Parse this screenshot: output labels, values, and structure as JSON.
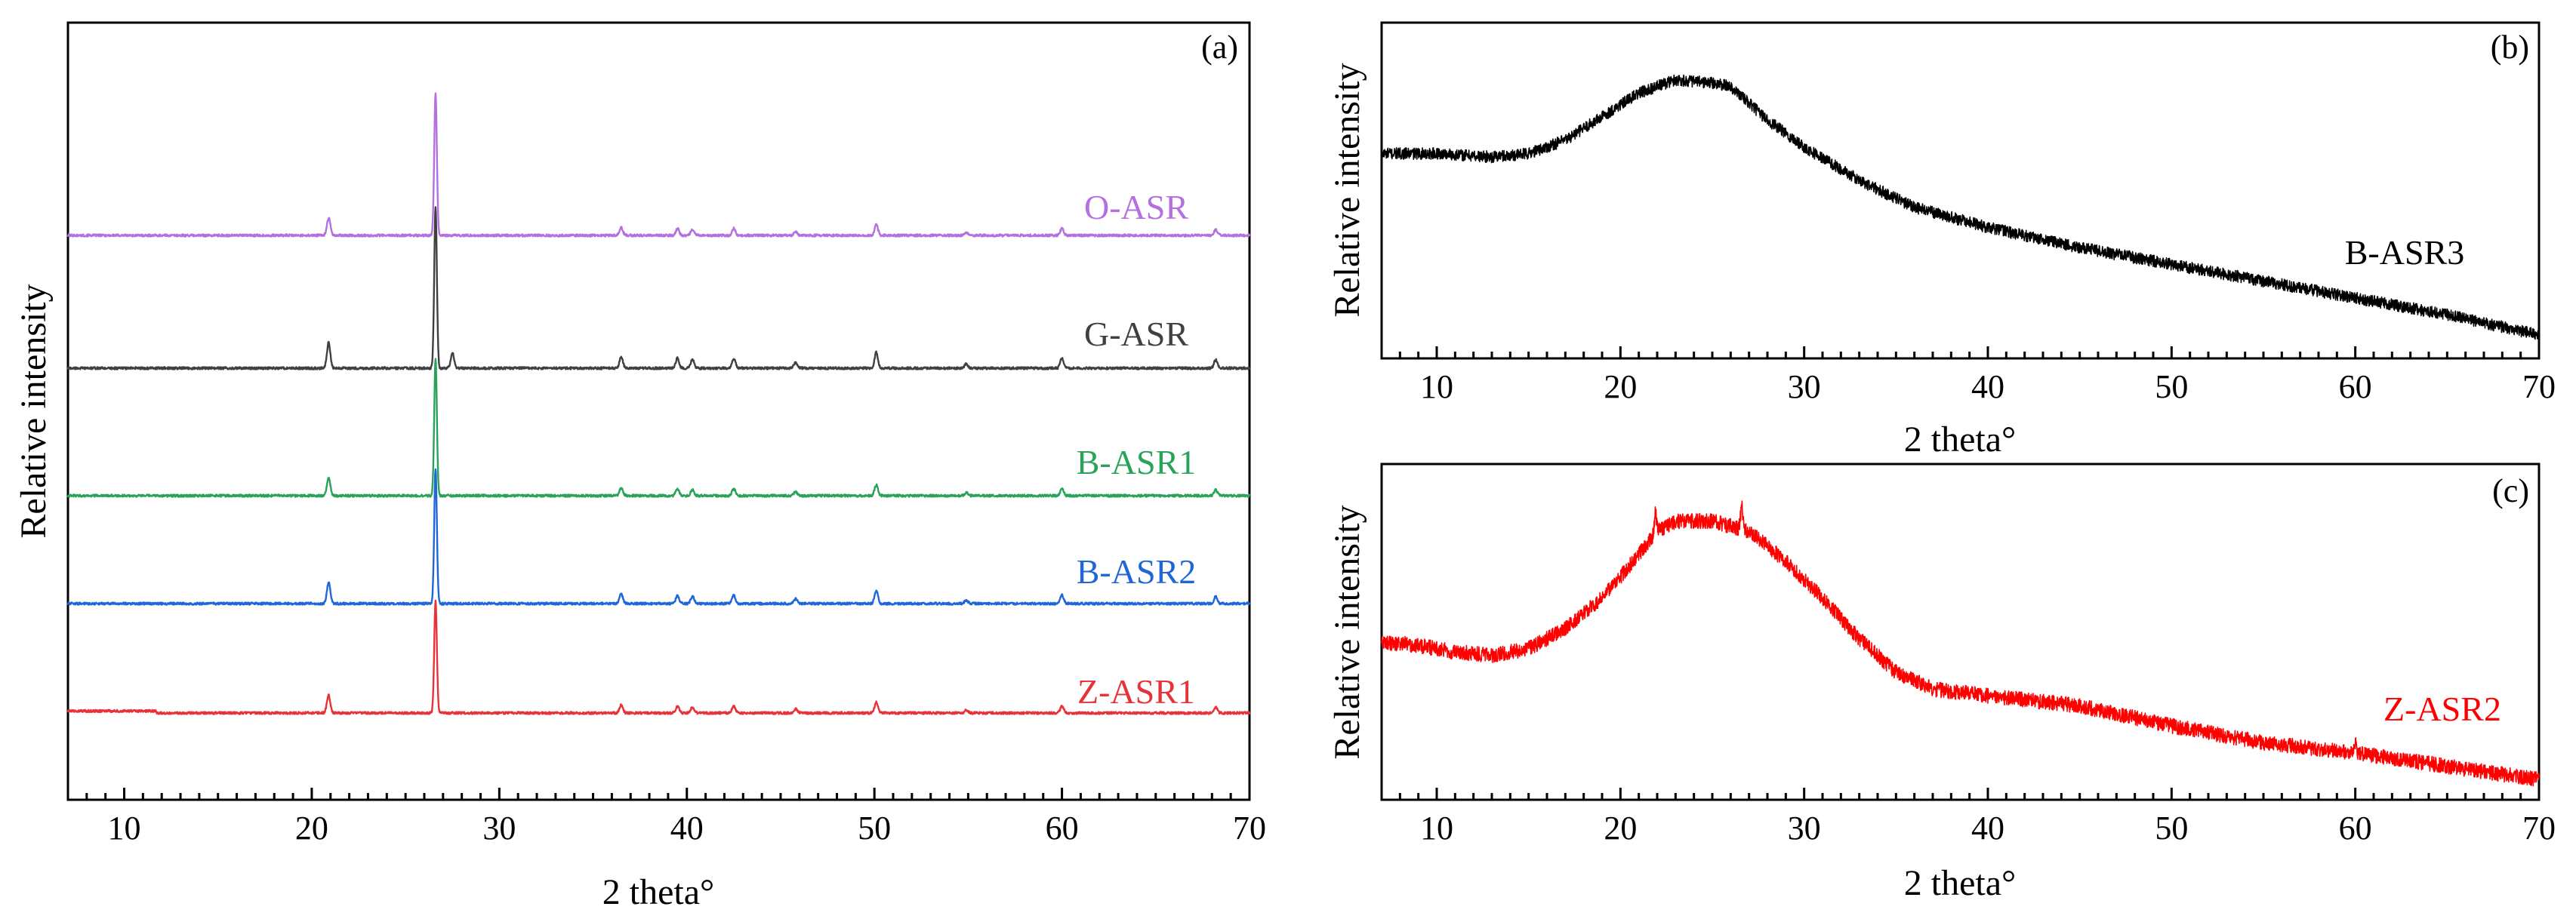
{
  "chart_data": [
    {
      "panel": "(a)",
      "type": "line",
      "xlabel": "2 theta°",
      "ylabel": "Relative intensity",
      "xlim": [
        7,
        70
      ],
      "xticks": [
        10,
        20,
        30,
        40,
        50,
        60,
        70
      ],
      "yticks": "none",
      "grid": false,
      "legend": "none",
      "stacked": true,
      "peaks_2theta": [
        20.9,
        26.6,
        36.5,
        39.5,
        40.3,
        42.5,
        45.8,
        50.1,
        54.9,
        60.0,
        68.2
      ],
      "peak_heights": [
        0.9,
        7.2,
        0.4,
        0.35,
        0.3,
        0.35,
        0.2,
        0.55,
        0.15,
        0.35,
        0.3
      ],
      "series": [
        {
          "name": "O-ASR",
          "color": "#b46fe0",
          "offset": 4,
          "scale": 1.0,
          "peak_26_6": 7.2
        },
        {
          "name": "G-ASR",
          "color": "#404040",
          "offset": 3,
          "scale": 1.45,
          "peak_26_6": 8.2,
          "extra_peak": [
            27.5,
            0.8
          ]
        },
        {
          "name": "B-ASR1",
          "color": "#2aa35a",
          "offset": 2,
          "scale": 1.0,
          "peak_26_6": 7.0
        },
        {
          "name": "B-ASR2",
          "color": "#1f67d6",
          "offset": 1,
          "scale": 1.2,
          "peak_26_6": 6.9
        },
        {
          "name": "Z-ASR1",
          "color": "#e8323a",
          "offset": 0,
          "scale": 1.0,
          "peak_26_6": 5.7
        }
      ]
    },
    {
      "panel": "(b)",
      "type": "line",
      "xlabel": "2 theta°",
      "ylabel": "Relative intensity",
      "xlim": [
        7,
        70
      ],
      "xticks": [
        10,
        20,
        30,
        40,
        50,
        60,
        70
      ],
      "yticks": "none",
      "grid": false,
      "legend": "none",
      "series": [
        {
          "name": "B-ASR3",
          "color": "#000000",
          "envelope_x": [
            7,
            10,
            13,
            15,
            17,
            19,
            21,
            23,
            25,
            26,
            27,
            28,
            30,
            33,
            36,
            40,
            45,
            50,
            55,
            60,
            65,
            70
          ],
          "envelope_y": [
            0.61,
            0.61,
            0.6,
            0.61,
            0.65,
            0.72,
            0.79,
            0.83,
            0.82,
            0.81,
            0.76,
            0.71,
            0.63,
            0.53,
            0.45,
            0.39,
            0.33,
            0.28,
            0.23,
            0.18,
            0.13,
            0.07
          ]
        }
      ]
    },
    {
      "panel": "(c)",
      "type": "line",
      "xlabel": "2 theta°",
      "ylabel": "Relative intensity",
      "xlim": [
        7,
        70
      ],
      "xticks": [
        10,
        20,
        30,
        40,
        50,
        60,
        70
      ],
      "yticks": "none",
      "grid": false,
      "legend": "none",
      "series": [
        {
          "name": "Z-ASR2",
          "color": "#ff0000",
          "envelope_x": [
            7,
            9,
            11,
            13,
            15,
            17,
            19,
            21,
            22,
            23,
            25,
            27,
            29,
            31,
            33,
            35,
            37,
            40,
            45,
            50,
            55,
            60,
            65,
            70
          ],
          "envelope_y": [
            0.47,
            0.46,
            0.44,
            0.43,
            0.45,
            0.51,
            0.6,
            0.73,
            0.8,
            0.83,
            0.83,
            0.8,
            0.71,
            0.6,
            0.48,
            0.38,
            0.33,
            0.31,
            0.28,
            0.22,
            0.17,
            0.14,
            0.1,
            0.06
          ],
          "sharp_peaks": [
            [
              21.9,
              0.06
            ],
            [
              26.6,
              0.07
            ],
            [
              60.0,
              0.03
            ]
          ]
        }
      ]
    }
  ]
}
